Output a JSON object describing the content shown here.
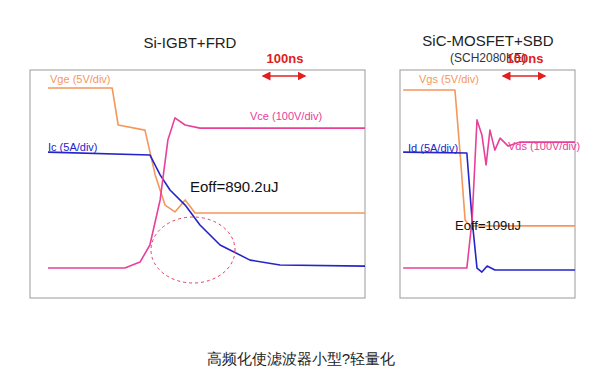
{
  "chart_data": [
    {
      "type": "line",
      "title": "Si-IGBT+FRD",
      "xlim": [
        0,
        950
      ],
      "ylim": [
        0,
        8
      ],
      "tick_labels": false,
      "grid": false,
      "annotations": [
        "100ns",
        "Eoff=890.2uJ"
      ],
      "series": [
        {
          "name": "Vge (5V/div)",
          "color": "#f5975a",
          "x": [
            51,
            233,
            250,
            326,
            355,
            383,
            411,
            440,
            468,
            950
          ],
          "values": [
            7.37,
            7.37,
            6.07,
            5.89,
            4.32,
            3.26,
            3.02,
            3.44,
            2.98,
            2.98
          ]
        },
        {
          "name": "Ic (5A/div)",
          "color": "#2424c8",
          "x": [
            51,
            340,
            369,
            397,
            440,
            482,
            539,
            624,
            709,
            950
          ],
          "values": [
            5.12,
            5.02,
            4.32,
            3.79,
            3.26,
            2.56,
            1.86,
            1.33,
            1.16,
            1.12
          ]
        },
        {
          "name": "Vce (100V/div)",
          "color": "#e8409a",
          "x": [
            51,
            269,
            312,
            340,
            369,
            391,
            411,
            440,
            482,
            950
          ],
          "values": [
            1.05,
            1.05,
            1.26,
            1.86,
            3.44,
            5.54,
            6.32,
            6.07,
            5.96,
            5.96
          ]
        }
      ]
    },
    {
      "type": "line",
      "title": "SiC-MOSFET+SBD",
      "subtitle": "(SCH2080KE)",
      "xlim": [
        0,
        500
      ],
      "ylim": [
        0,
        8
      ],
      "tick_labels": false,
      "grid": false,
      "annotations": [
        "100ns",
        "Eoff=109uJ"
      ],
      "series": [
        {
          "name": "Vgs (5V/div)",
          "color": "#f5975a",
          "x": [
            9,
            157,
            171,
            186,
            200,
            500
          ],
          "values": [
            7.3,
            7.3,
            5.19,
            2.74,
            2.53,
            2.53
          ]
        },
        {
          "name": "Id (5A/div)",
          "color": "#2424c8",
          "x": [
            9,
            191,
            206,
            220,
            234,
            249,
            271,
            500
          ],
          "values": [
            5.12,
            5.09,
            2.74,
            1.05,
            0.91,
            1.12,
            0.98,
            0.98
          ]
        },
        {
          "name": "Vds (100V/div)",
          "color": "#e8409a",
          "x": [
            9,
            191,
            206,
            220,
            234,
            246,
            257,
            271,
            286,
            309,
            343,
            500
          ],
          "values": [
            1.05,
            1.05,
            2.74,
            6.25,
            5.72,
            4.67,
            5.89,
            5.19,
            5.61,
            5.33,
            5.47,
            5.47
          ]
        }
      ]
    }
  ],
  "caption": "高频化使滤波器小型?轻量化"
}
